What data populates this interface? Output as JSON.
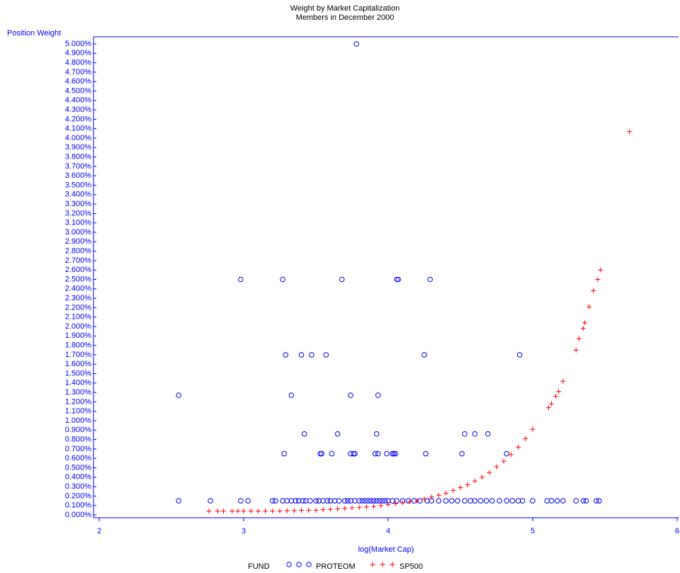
{
  "chart_data": {
    "type": "scatter",
    "title": "Weight by Market Capitalization",
    "subtitle": "Members in December 2000",
    "y_label": "Position Weight",
    "x_label": "log(Market Cap)",
    "legend_title": "FUND",
    "axis_color": "#0000ff",
    "xlim": [
      2,
      6
    ],
    "xticks": [
      2,
      3,
      4,
      5,
      6
    ],
    "ylim": [
      0,
      5
    ],
    "yticks": [
      {
        "value": 0,
        "label": "0.000%"
      },
      {
        "value": 0.1,
        "label": "0.100%"
      },
      {
        "value": 0.2,
        "label": "0.200%"
      },
      {
        "value": 0.3,
        "label": "0.300%"
      },
      {
        "value": 0.4,
        "label": "0.400%"
      },
      {
        "value": 0.5,
        "label": "0.500%"
      },
      {
        "value": 0.6,
        "label": "0.600%"
      },
      {
        "value": 0.7,
        "label": "0.700%"
      },
      {
        "value": 0.8,
        "label": "0.800%"
      },
      {
        "value": 0.9,
        "label": "0.900%"
      },
      {
        "value": 1.0,
        "label": "1.000%"
      },
      {
        "value": 1.1,
        "label": "1.100%"
      },
      {
        "value": 1.2,
        "label": "1.200%"
      },
      {
        "value": 1.3,
        "label": "1.300%"
      },
      {
        "value": 1.4,
        "label": "1.400%"
      },
      {
        "value": 1.5,
        "label": "1.500%"
      },
      {
        "value": 1.6,
        "label": "1.600%"
      },
      {
        "value": 1.7,
        "label": "1.700%"
      },
      {
        "value": 1.8,
        "label": "1.800%"
      },
      {
        "value": 1.9,
        "label": "1.900%"
      },
      {
        "value": 2.0,
        "label": "2.000%"
      },
      {
        "value": 2.1,
        "label": "2.100%"
      },
      {
        "value": 2.2,
        "label": "2.200%"
      },
      {
        "value": 2.3,
        "label": "2.300%"
      },
      {
        "value": 2.4,
        "label": "2.400%"
      },
      {
        "value": 2.5,
        "label": "2.500%"
      },
      {
        "value": 2.6,
        "label": "2.600%"
      },
      {
        "value": 2.7,
        "label": "2.700%"
      },
      {
        "value": 2.8,
        "label": "2.800%"
      },
      {
        "value": 2.9,
        "label": "2.900%"
      },
      {
        "value": 3.0,
        "label": "3.000%"
      },
      {
        "value": 3.1,
        "label": "3.100%"
      },
      {
        "value": 3.2,
        "label": "3.200%"
      },
      {
        "value": 3.3,
        "label": "3.300%"
      },
      {
        "value": 3.4,
        "label": "3.400%"
      },
      {
        "value": 3.5,
        "label": "3.500%"
      },
      {
        "value": 3.6,
        "label": "3.600%"
      },
      {
        "value": 3.7,
        "label": "3.700%"
      },
      {
        "value": 3.8,
        "label": "3.800%"
      },
      {
        "value": 3.9,
        "label": "3.900%"
      },
      {
        "value": 4.0,
        "label": "4.000%"
      },
      {
        "value": 4.1,
        "label": "4.100%"
      },
      {
        "value": 4.2,
        "label": "4.200%"
      },
      {
        "value": 4.3,
        "label": "4.300%"
      },
      {
        "value": 4.4,
        "label": "4.400%"
      },
      {
        "value": 4.5,
        "label": "4.500%"
      },
      {
        "value": 4.6,
        "label": "4.600%"
      },
      {
        "value": 4.7,
        "label": "4.700%"
      },
      {
        "value": 4.8,
        "label": "4.800%"
      },
      {
        "value": 4.9,
        "label": "4.900%"
      },
      {
        "value": 5.0,
        "label": "5.000%"
      }
    ],
    "series": [
      {
        "name": "PROTEOM",
        "color": "#0000ff",
        "marker": "circle",
        "x": [
          3.78,
          2.98,
          3.27,
          3.68,
          4.06,
          4.07,
          4.29,
          3.29,
          3.4,
          3.47,
          3.57,
          4.25,
          4.91,
          2.55,
          3.33,
          3.74,
          3.93,
          3.42,
          3.65,
          3.92,
          4.53,
          4.6,
          4.69,
          3.28,
          3.53,
          3.54,
          3.61,
          3.74,
          3.76,
          3.77,
          3.91,
          3.93,
          3.99,
          4.03,
          4.04,
          4.05,
          4.26,
          4.51,
          4.82,
          2.55,
          2.77,
          2.98,
          3.03,
          3.2,
          3.22,
          3.27,
          3.3,
          3.33,
          3.36,
          3.38,
          3.41,
          3.43,
          3.46,
          3.5,
          3.52,
          3.55,
          3.58,
          3.6,
          3.63,
          3.66,
          3.7,
          3.72,
          3.74,
          3.77,
          3.8,
          3.82,
          3.84,
          3.86,
          3.88,
          3.9,
          3.92,
          3.94,
          3.96,
          3.98,
          4.0,
          4.03,
          4.06,
          4.1,
          4.14,
          4.18,
          4.22,
          4.27,
          4.3,
          4.35,
          4.4,
          4.44,
          4.48,
          4.53,
          4.57,
          4.6,
          4.64,
          4.68,
          4.72,
          4.77,
          4.82,
          4.86,
          4.9,
          4.93,
          5.0,
          5.1,
          5.13,
          5.17,
          5.21,
          5.3,
          5.35,
          5.37,
          5.44,
          5.46
        ],
        "y": [
          5.0,
          2.5,
          2.5,
          2.5,
          2.5,
          2.5,
          2.5,
          1.7,
          1.7,
          1.7,
          1.7,
          1.7,
          1.7,
          1.27,
          1.27,
          1.27,
          1.27,
          0.86,
          0.86,
          0.86,
          0.86,
          0.86,
          0.86,
          0.65,
          0.65,
          0.65,
          0.65,
          0.65,
          0.65,
          0.65,
          0.65,
          0.65,
          0.65,
          0.65,
          0.65,
          0.65,
          0.65,
          0.65,
          0.65,
          0.15,
          0.15,
          0.15,
          0.15,
          0.15,
          0.15,
          0.15,
          0.15,
          0.15,
          0.15,
          0.15,
          0.15,
          0.15,
          0.15,
          0.15,
          0.15,
          0.15,
          0.15,
          0.15,
          0.15,
          0.15,
          0.15,
          0.15,
          0.15,
          0.15,
          0.15,
          0.15,
          0.15,
          0.15,
          0.15,
          0.15,
          0.15,
          0.15,
          0.15,
          0.15,
          0.15,
          0.15,
          0.15,
          0.15,
          0.15,
          0.15,
          0.15,
          0.15,
          0.15,
          0.15,
          0.15,
          0.15,
          0.15,
          0.15,
          0.15,
          0.15,
          0.15,
          0.15,
          0.15,
          0.15,
          0.15,
          0.15,
          0.15,
          0.15,
          0.15,
          0.15,
          0.15,
          0.15,
          0.15,
          0.15,
          0.15,
          0.15,
          0.15,
          0.15
        ]
      },
      {
        "name": "SP500",
        "color": "#ff0000",
        "marker": "plus",
        "x": [
          2.76,
          2.82,
          2.86,
          2.92,
          2.96,
          3.0,
          3.05,
          3.1,
          3.15,
          3.2,
          3.25,
          3.3,
          3.35,
          3.4,
          3.45,
          3.5,
          3.55,
          3.6,
          3.65,
          3.7,
          3.75,
          3.8,
          3.85,
          3.9,
          3.95,
          4.0,
          4.05,
          4.1,
          4.15,
          4.2,
          4.25,
          4.3,
          4.35,
          4.4,
          4.45,
          4.5,
          4.55,
          4.6,
          4.65,
          4.7,
          4.75,
          4.8,
          4.85,
          4.9,
          4.95,
          5.0,
          5.11,
          5.13,
          5.16,
          5.18,
          5.21,
          5.3,
          5.32,
          5.35,
          5.36,
          5.39,
          5.42,
          5.45,
          5.47,
          5.67
        ],
        "y": [
          0.04,
          0.04,
          0.04,
          0.04,
          0.04,
          0.04,
          0.04,
          0.04,
          0.04,
          0.04,
          0.04,
          0.045,
          0.045,
          0.05,
          0.05,
          0.05,
          0.055,
          0.06,
          0.065,
          0.07,
          0.075,
          0.08,
          0.085,
          0.09,
          0.1,
          0.11,
          0.12,
          0.13,
          0.14,
          0.15,
          0.17,
          0.19,
          0.21,
          0.23,
          0.26,
          0.29,
          0.32,
          0.36,
          0.4,
          0.45,
          0.51,
          0.57,
          0.64,
          0.72,
          0.81,
          0.91,
          1.14,
          1.18,
          1.26,
          1.31,
          1.42,
          1.75,
          1.87,
          1.98,
          2.04,
          2.21,
          2.38,
          2.5,
          2.6,
          4.07
        ]
      }
    ]
  }
}
